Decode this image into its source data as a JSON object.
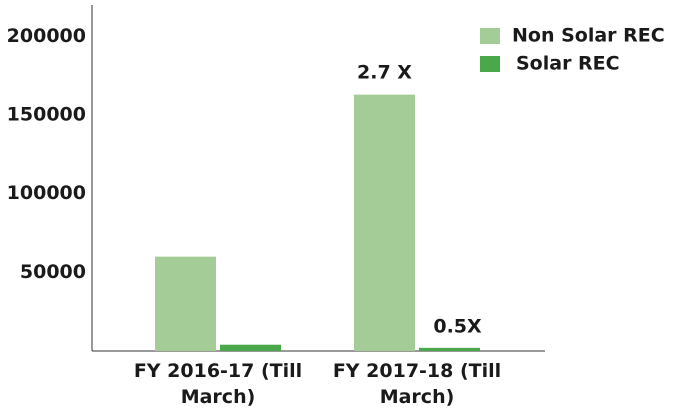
{
  "chart_data": {
    "type": "bar",
    "categories": [
      "FY 2016-17 (Till March)",
      "FY 2017-18 (Till March)"
    ],
    "series": [
      {
        "name": "Non Solar REC",
        "color": "#a3cc96",
        "values": [
          60000,
          163000
        ]
      },
      {
        "name": "Solar REC",
        "color": "#4aa84a",
        "values": [
          4000,
          2000
        ]
      }
    ],
    "annotations": [
      {
        "text": "2.7 X"
      },
      {
        "text": "0.5X"
      }
    ],
    "ylim": [
      0,
      220000
    ],
    "yticks": [
      50000,
      100000,
      150000,
      200000
    ],
    "grid": false,
    "legend": "top-right"
  }
}
